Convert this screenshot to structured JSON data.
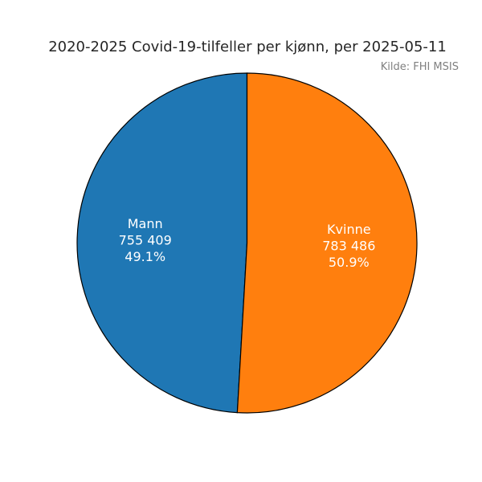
{
  "chart_data": {
    "type": "pie",
    "title": "2020-2025 Covid-19-tilfeller per kjønn, per 2025-05-11",
    "source": "Kilde: FHI MSIS",
    "start_angle_deg": 90,
    "direction": "counterclockwise",
    "slices": [
      {
        "name": "Mann",
        "value_text": "755 409",
        "percent_text": "49.1%",
        "value": 755409,
        "percent": 49.1,
        "color": "#1f77b4"
      },
      {
        "name": "Kvinne",
        "value_text": "783 486",
        "percent_text": "50.9%",
        "value": 783486,
        "percent": 50.9,
        "color": "#ff7f0e"
      }
    ]
  }
}
